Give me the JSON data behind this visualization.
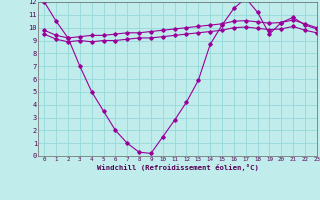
{
  "title": "",
  "xlabel": "Windchill (Refroidissement éolien,°C)",
  "ylabel": "",
  "background_color": "#c0ecec",
  "grid_color": "#96d8d8",
  "line_color": "#990099",
  "xlim": [
    -0.5,
    23
  ],
  "ylim": [
    0,
    12
  ],
  "xticks": [
    0,
    1,
    2,
    3,
    4,
    5,
    6,
    7,
    8,
    9,
    10,
    11,
    12,
    13,
    14,
    15,
    16,
    17,
    18,
    19,
    20,
    21,
    22,
    23
  ],
  "yticks": [
    0,
    1,
    2,
    3,
    4,
    5,
    6,
    7,
    8,
    9,
    10,
    11,
    12
  ],
  "line1_x": [
    0,
    1,
    2,
    3,
    4,
    5,
    6,
    7,
    8,
    9,
    10,
    11,
    12,
    13,
    14,
    15,
    16,
    17,
    18,
    19,
    20,
    21,
    22,
    23
  ],
  "line1_y": [
    12.0,
    10.5,
    9.2,
    7.0,
    5.0,
    3.5,
    2.0,
    1.0,
    0.3,
    0.2,
    1.5,
    2.8,
    4.2,
    5.9,
    8.7,
    10.2,
    11.5,
    12.3,
    11.2,
    9.5,
    10.4,
    10.8,
    10.2,
    9.9
  ],
  "line2_x": [
    0,
    1,
    2,
    3,
    4,
    5,
    6,
    7,
    8,
    9,
    10,
    11,
    12,
    13,
    14,
    15,
    16,
    17,
    18,
    19,
    20,
    21,
    22,
    23
  ],
  "line2_y": [
    9.8,
    9.4,
    9.2,
    9.3,
    9.4,
    9.4,
    9.5,
    9.6,
    9.6,
    9.7,
    9.8,
    9.9,
    10.0,
    10.1,
    10.2,
    10.3,
    10.5,
    10.55,
    10.45,
    10.35,
    10.4,
    10.6,
    10.3,
    10.0
  ],
  "line3_x": [
    0,
    1,
    2,
    3,
    4,
    5,
    6,
    7,
    8,
    9,
    10,
    11,
    12,
    13,
    14,
    15,
    16,
    17,
    18,
    19,
    20,
    21,
    22,
    23
  ],
  "line3_y": [
    9.5,
    9.1,
    8.9,
    9.0,
    8.9,
    9.0,
    9.0,
    9.1,
    9.2,
    9.2,
    9.3,
    9.4,
    9.5,
    9.6,
    9.7,
    9.8,
    10.0,
    10.05,
    9.95,
    9.85,
    9.9,
    10.1,
    9.8,
    9.6
  ]
}
